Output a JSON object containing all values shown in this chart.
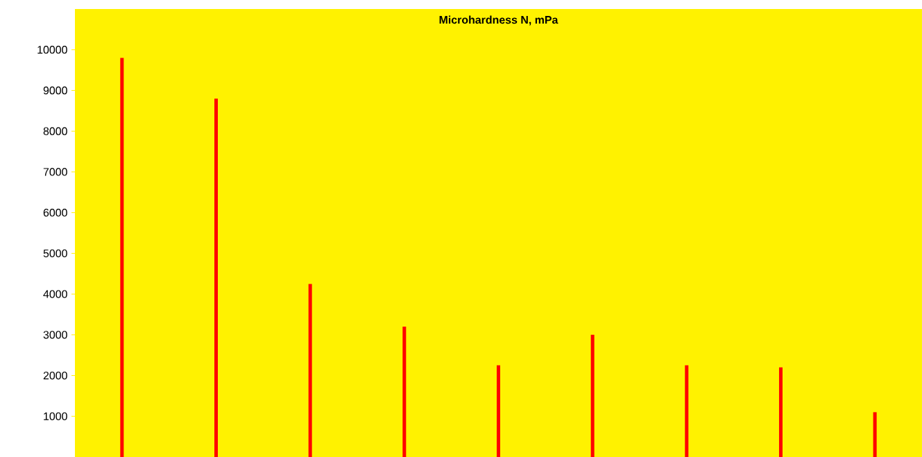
{
  "chart_data": {
    "type": "bar",
    "title": "Microhardness N, mPa",
    "categories": [
      null,
      null,
      null,
      null,
      null,
      null,
      null,
      null,
      null
    ],
    "values": [
      9800,
      8800,
      4250,
      3200,
      2250,
      3000,
      2250,
      2200,
      1100
    ],
    "color": "#ff0000",
    "ylim": [
      0,
      11000
    ],
    "yticks": [
      1000,
      2000,
      3000,
      4000,
      5000,
      6000,
      7000,
      8000,
      9000,
      10000
    ],
    "grid": false
  }
}
